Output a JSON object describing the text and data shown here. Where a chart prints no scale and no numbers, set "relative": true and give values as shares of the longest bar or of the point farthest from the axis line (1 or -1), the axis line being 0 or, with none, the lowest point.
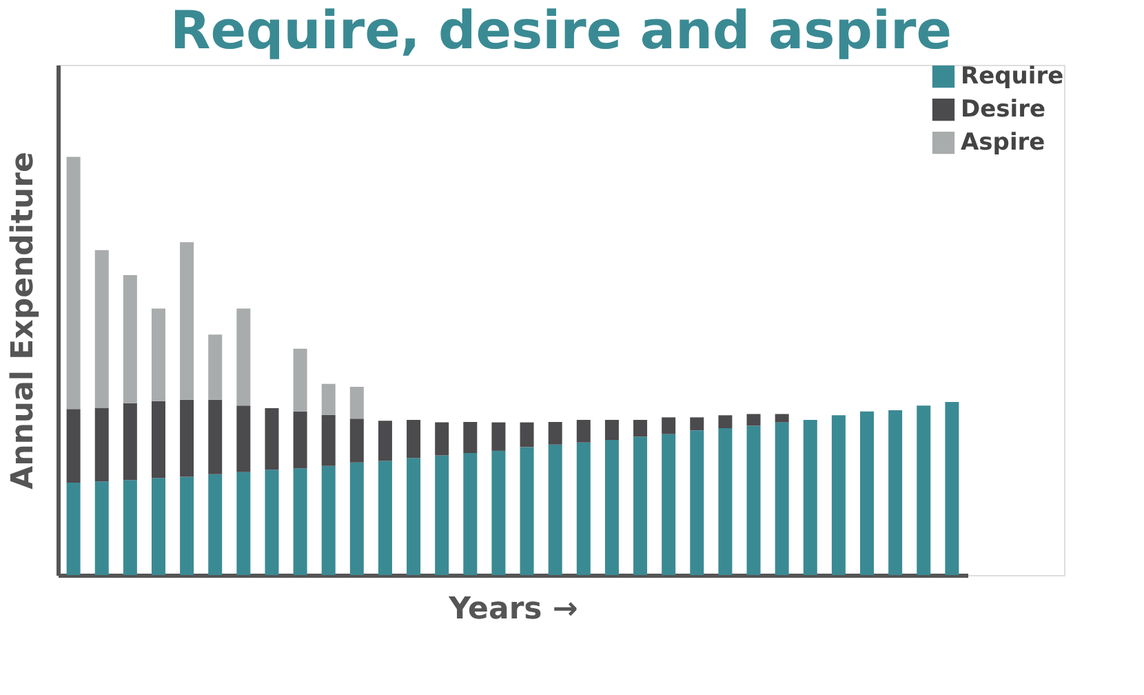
{
  "chart_data": {
    "type": "bar",
    "title": "Require, desire and aspire",
    "xlabel": "Years →",
    "ylabel": "Annual Expenditure",
    "categories": [
      null,
      null,
      null,
      null,
      null,
      null,
      null,
      null,
      null,
      null,
      null,
      null,
      null,
      null,
      null,
      null,
      null,
      null,
      null,
      null,
      null,
      null,
      null,
      null,
      null,
      null,
      null,
      null,
      null,
      null,
      null,
      null
    ],
    "stacked": true,
    "relative": true,
    "grid": false,
    "legend": "top right",
    "series": [
      {
        "name": "Require",
        "color": "#3a8a94",
        "values": [
          0.221,
          0.224,
          0.227,
          0.232,
          0.235,
          0.241,
          0.246,
          0.252,
          0.255,
          0.261,
          0.269,
          0.273,
          0.28,
          0.286,
          0.292,
          0.297,
          0.306,
          0.312,
          0.317,
          0.323,
          0.331,
          0.337,
          0.346,
          0.351,
          0.357,
          0.365,
          0.371,
          0.382,
          0.391,
          0.394,
          0.405,
          0.414
        ]
      },
      {
        "name": "Desire",
        "color": "#4b4a4d",
        "values": [
          0.176,
          0.176,
          0.184,
          0.184,
          0.184,
          0.178,
          0.159,
          0.147,
          0.136,
          0.122,
          0.105,
          0.096,
          0.091,
          0.079,
          0.074,
          0.068,
          0.059,
          0.054,
          0.054,
          0.048,
          0.04,
          0.04,
          0.031,
          0.031,
          0.028,
          0.02,
          null,
          null,
          null,
          null,
          null,
          null
        ]
      },
      {
        "name": "Aspire",
        "color": "#a9acac",
        "values": [
          0.603,
          0.377,
          0.306,
          0.221,
          0.377,
          0.156,
          0.232,
          null,
          0.15,
          0.074,
          0.076,
          null,
          null,
          null,
          null,
          null,
          null,
          null,
          null,
          null,
          null,
          null,
          null,
          null,
          null,
          null,
          null,
          null,
          null,
          null,
          null,
          null
        ]
      }
    ]
  }
}
